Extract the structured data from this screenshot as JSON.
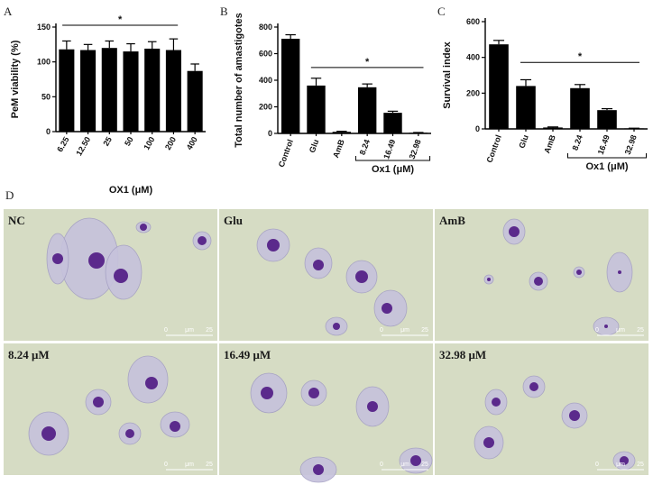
{
  "panel_letters": {
    "a": "A",
    "b": "B",
    "c": "C",
    "d": "D"
  },
  "chart_data": [
    {
      "type": "bar",
      "panel": "A",
      "categories": [
        "6.25",
        "12.50",
        "25",
        "50",
        "100",
        "200",
        "400"
      ],
      "values": [
        118,
        117,
        120,
        115,
        119,
        117,
        87
      ],
      "errors": [
        12,
        8,
        10,
        11,
        10,
        16,
        10
      ],
      "ylabel": "PeM viability (%)",
      "xlabel": "OX1 (μM)",
      "ylim": [
        0,
        150
      ],
      "yticks": [
        0,
        50,
        100,
        150
      ],
      "significance": "*",
      "significance_span": [
        0,
        5
      ]
    },
    {
      "type": "bar",
      "panel": "B",
      "categories": [
        "Control",
        "Glu",
        "AmB",
        "8.24",
        "16.49",
        "32.98"
      ],
      "values": [
        712,
        360,
        12,
        347,
        155,
        5
      ],
      "errors": [
        30,
        55,
        4,
        25,
        12,
        2
      ],
      "ylabel": "Total number of amastigotes",
      "xlabel": "Ox1 (μM)",
      "ylim": [
        0,
        800
      ],
      "yticks": [
        0,
        200,
        400,
        600,
        800
      ],
      "significance": "*",
      "significance_span": [
        1,
        5
      ],
      "bracket_span": [
        3,
        5
      ]
    },
    {
      "type": "bar",
      "panel": "C",
      "categories": [
        "Control",
        "Glu",
        "AmB",
        "8.24",
        "16.49",
        "32.98"
      ],
      "values": [
        473,
        240,
        8,
        228,
        105,
        3
      ],
      "errors": [
        22,
        35,
        3,
        20,
        8,
        1
      ],
      "ylabel": "Survival index",
      "xlabel": "Ox1 (μM)",
      "ylim": [
        0,
        600
      ],
      "yticks": [
        0,
        200,
        400,
        600
      ],
      "significance": "*",
      "significance_span": [
        1,
        5
      ],
      "bracket_span": [
        3,
        5
      ]
    }
  ],
  "micrographs": [
    {
      "label": "NC"
    },
    {
      "label": "Glu"
    },
    {
      "label": "AmB"
    },
    {
      "label": "8.24 μM"
    },
    {
      "label": "16.49 μM"
    },
    {
      "label": "32.98 μM"
    }
  ],
  "scale_bar": {
    "start": "0",
    "unit": "μm",
    "end": "25"
  },
  "colors": {
    "bar": "#000000",
    "micrograph_bg": "#d6dcc4",
    "cell_cytoplasm": "#c6c2dc",
    "nucleus": "#5b2a8c"
  }
}
